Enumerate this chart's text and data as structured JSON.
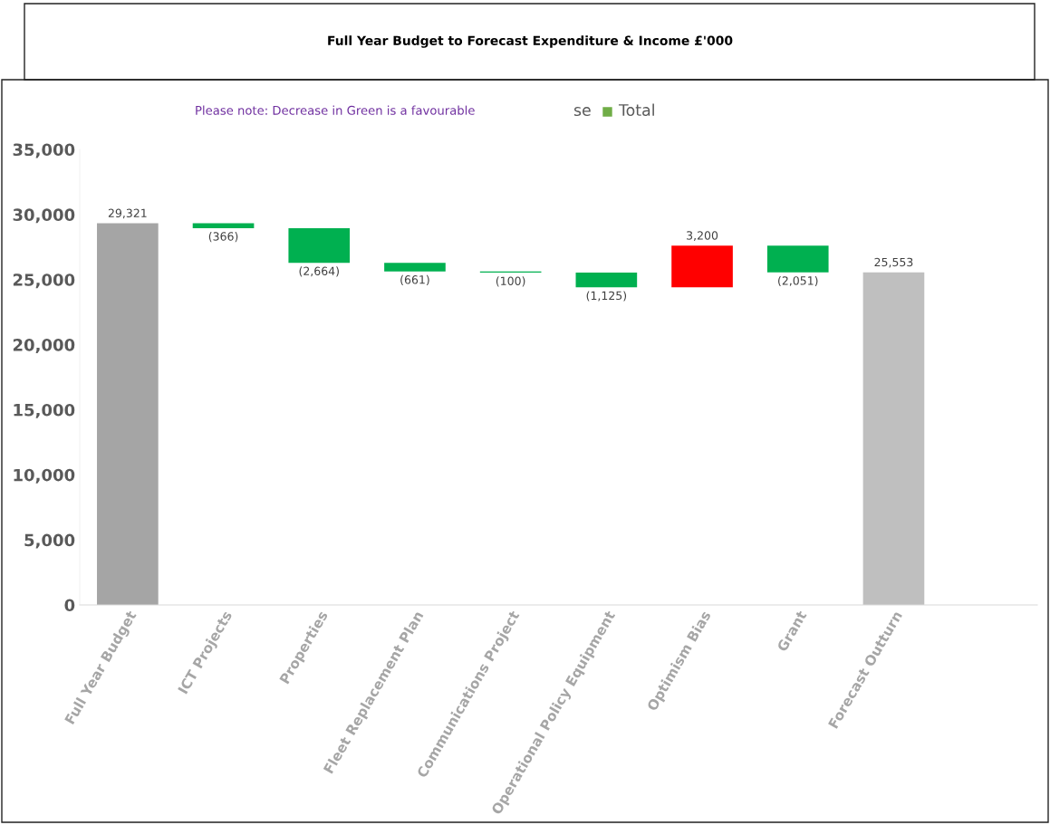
{
  "chart_data": {
    "type": "bar",
    "title": "Full Year Budget to Forecast Expenditure & Income £'000",
    "categories": [
      "Full Year Budget",
      "ICT Projects",
      "Properties",
      "Fleet Replacement Plan",
      "Communications Project",
      "Operational Policy Equipment",
      "Optimism Bias",
      "Grant",
      "Forecast Outturn"
    ],
    "values": [
      29321,
      -366,
      -2664,
      -661,
      -100,
      -1125,
      3200,
      -2051,
      25553
    ],
    "base": [
      0,
      29321,
      28955,
      26291,
      25630,
      25530,
      24405,
      27605,
      0
    ],
    "colors": [
      "#a5a5a5",
      "#00b050",
      "#00b050",
      "#00b050",
      "#00b050",
      "#00b050",
      "#ff0000",
      "#00b050",
      "#bfbfbf"
    ],
    "value_labels": [
      "29,321",
      "(366)",
      "(2,664)",
      "(661)",
      "(100)",
      "(1,125)",
      "3,200",
      "(2,051)",
      "25,553"
    ],
    "ylim": [
      0,
      35000
    ],
    "yticks": [
      {
        "value": 0,
        "label": "0"
      },
      {
        "value": 5000,
        "label": "5,000"
      },
      {
        "value": 10000,
        "label": "10,000"
      },
      {
        "value": 15000,
        "label": "15,000"
      },
      {
        "value": 20000,
        "label": "20,000"
      },
      {
        "value": 25000,
        "label": "25,000"
      },
      {
        "value": 30000,
        "label": "30,000"
      },
      {
        "value": 35000,
        "label": "35,000"
      }
    ],
    "annotations": [
      "Please note: Decrease in Green is a favourable",
      "se",
      "Total"
    ],
    "grid": false
  }
}
